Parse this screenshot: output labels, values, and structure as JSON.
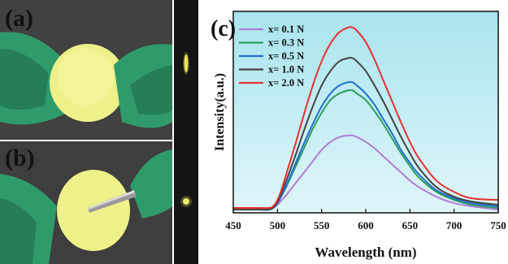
{
  "panels": {
    "a": {
      "letter": "(a)"
    },
    "b": {
      "letter": "(b)"
    },
    "c": {
      "letter": "(c)"
    }
  },
  "colors": {
    "plot_bg_top": "#a9e4ee",
    "plot_bg_bottom": "#dff6f9",
    "glove": "#2f9b6a",
    "glove_dark": "#1f6e4b",
    "disk": "#eef08a",
    "table": "#3a3a3a",
    "dark_strip": "#141414",
    "glow": "#e7e45a"
  },
  "chart_data": {
    "type": "line",
    "xlabel": "Wavelength (nm)",
    "ylabel": "Intensity(a.u.)",
    "xlim": [
      450,
      750
    ],
    "xticks": [
      450,
      500,
      550,
      600,
      650,
      700,
      750
    ],
    "ylim": [
      0,
      1.25
    ],
    "grid": false,
    "legend_position": "top-left",
    "x": [
      450,
      480,
      490,
      495,
      500,
      505,
      510,
      520,
      530,
      540,
      550,
      560,
      570,
      580,
      585,
      590,
      600,
      610,
      620,
      630,
      640,
      650,
      660,
      680,
      700,
      720,
      750
    ],
    "series": [
      {
        "name": "x= 0.1 N",
        "color": "#b07ad6",
        "values": [
          0.02,
          0.02,
          0.02,
          0.03,
          0.05,
          0.08,
          0.11,
          0.18,
          0.25,
          0.32,
          0.39,
          0.44,
          0.47,
          0.48,
          0.48,
          0.47,
          0.44,
          0.4,
          0.35,
          0.3,
          0.25,
          0.2,
          0.16,
          0.1,
          0.06,
          0.04,
          0.02
        ]
      },
      {
        "name": "x= 0.3 N",
        "color": "#2e9e5e",
        "values": [
          0.02,
          0.02,
          0.02,
          0.03,
          0.06,
          0.11,
          0.16,
          0.28,
          0.4,
          0.52,
          0.62,
          0.7,
          0.74,
          0.76,
          0.76,
          0.74,
          0.7,
          0.63,
          0.55,
          0.46,
          0.37,
          0.29,
          0.22,
          0.13,
          0.08,
          0.05,
          0.03
        ]
      },
      {
        "name": "x= 0.5 N",
        "color": "#1f6fd1",
        "values": [
          0.02,
          0.02,
          0.02,
          0.03,
          0.06,
          0.11,
          0.17,
          0.3,
          0.43,
          0.55,
          0.66,
          0.74,
          0.79,
          0.81,
          0.81,
          0.79,
          0.74,
          0.67,
          0.58,
          0.49,
          0.39,
          0.31,
          0.24,
          0.14,
          0.09,
          0.06,
          0.04
        ]
      },
      {
        "name": "x= 1.0 N",
        "color": "#444444",
        "values": [
          0.02,
          0.02,
          0.02,
          0.03,
          0.07,
          0.13,
          0.2,
          0.35,
          0.51,
          0.66,
          0.79,
          0.88,
          0.94,
          0.96,
          0.96,
          0.94,
          0.88,
          0.79,
          0.69,
          0.58,
          0.47,
          0.37,
          0.28,
          0.16,
          0.1,
          0.07,
          0.05
        ]
      },
      {
        "name": "x= 2.0 N",
        "color": "#e8312f",
        "values": [
          0.03,
          0.03,
          0.03,
          0.04,
          0.08,
          0.15,
          0.24,
          0.42,
          0.61,
          0.79,
          0.94,
          1.05,
          1.12,
          1.15,
          1.15,
          1.13,
          1.06,
          0.95,
          0.82,
          0.69,
          0.56,
          0.44,
          0.34,
          0.2,
          0.13,
          0.09,
          0.08
        ]
      }
    ]
  }
}
